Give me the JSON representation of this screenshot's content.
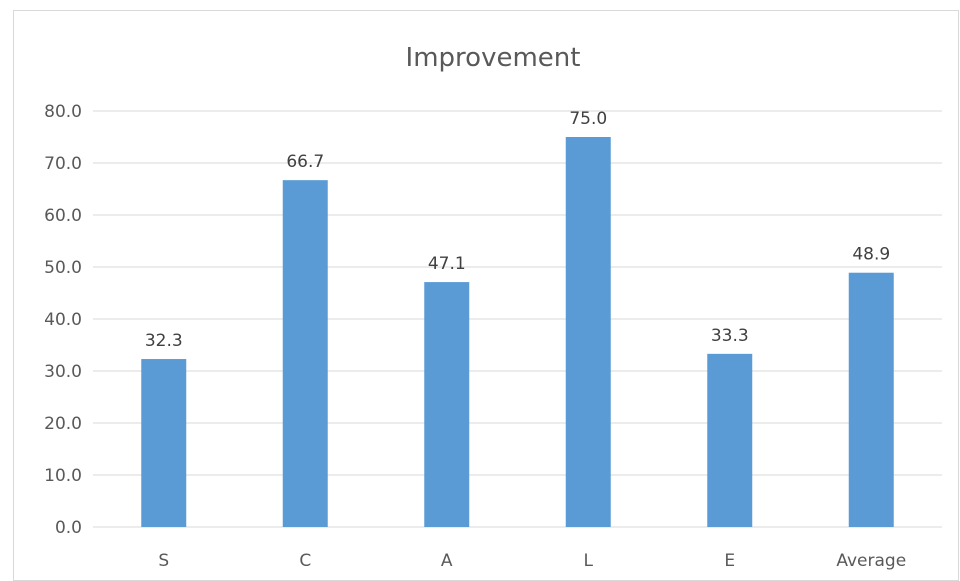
{
  "chart_data": {
    "type": "bar",
    "title": "Improvement",
    "categories": [
      "S",
      "C",
      "A",
      "L",
      "E",
      "Average"
    ],
    "values": [
      32.3,
      66.7,
      47.1,
      75.0,
      33.3,
      48.9
    ],
    "data_labels": [
      "32.3",
      "66.7",
      "47.1",
      "75.0",
      "33.3",
      "48.9"
    ],
    "y_ticks": [
      "0.0",
      "10.0",
      "20.0",
      "30.0",
      "40.0",
      "50.0",
      "60.0",
      "70.0",
      "80.0"
    ],
    "ylim": [
      0,
      80
    ],
    "grid": true,
    "bar_color": "#5b9bd5"
  }
}
